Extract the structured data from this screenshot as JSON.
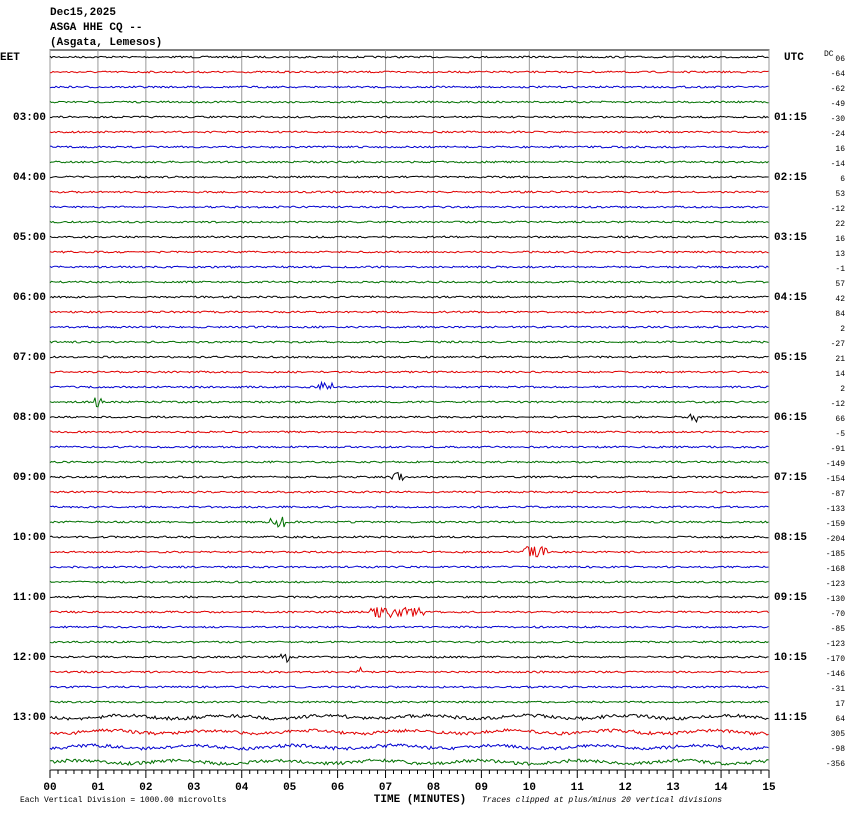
{
  "header": {
    "date": "Dec15,2025",
    "station": "ASGA HHE CQ --",
    "location": "(Asgata, Lemesos)"
  },
  "axes": {
    "left_title": "EET",
    "right_title": "UTC",
    "left_labels": [
      "03:00",
      "04:00",
      "05:00",
      "06:00",
      "07:00",
      "08:00",
      "09:00",
      "10:00",
      "11:00",
      "12:00",
      "13:00"
    ],
    "right_labels": [
      "01:15",
      "02:15",
      "03:15",
      "04:15",
      "05:15",
      "06:15",
      "07:15",
      "08:15",
      "09:15",
      "10:15",
      "11:15"
    ],
    "dc_title": "DC",
    "dc_offsets": [
      "06",
      "-64",
      "-62",
      "-49",
      "-30",
      "-24",
      "16",
      "-14",
      "6",
      "53",
      "-12",
      "22",
      "16",
      "13",
      "-1",
      "57",
      "42",
      "84",
      "2",
      "-27",
      "21",
      "14",
      "2",
      "-12",
      "66",
      "-5",
      "-91",
      "-149",
      "-154",
      "-87",
      "-133",
      "-159",
      "-204",
      "-185",
      "-168",
      "-123",
      "-130",
      "-70",
      "-85",
      "-123",
      "-170",
      "-146",
      "-31",
      "17",
      "64",
      "305",
      "-98",
      "-356"
    ],
    "x_ticks": [
      "00",
      "01",
      "02",
      "03",
      "04",
      "05",
      "06",
      "07",
      "08",
      "09",
      "10",
      "11",
      "12",
      "13",
      "14",
      "15"
    ],
    "x_title": "TIME (MINUTES)"
  },
  "footer": {
    "scale_note": "Each Vertical Division = 1000.00 microvolts",
    "clip_note": "Traces clipped at plus/minus 20 vertical divisions"
  }
}
